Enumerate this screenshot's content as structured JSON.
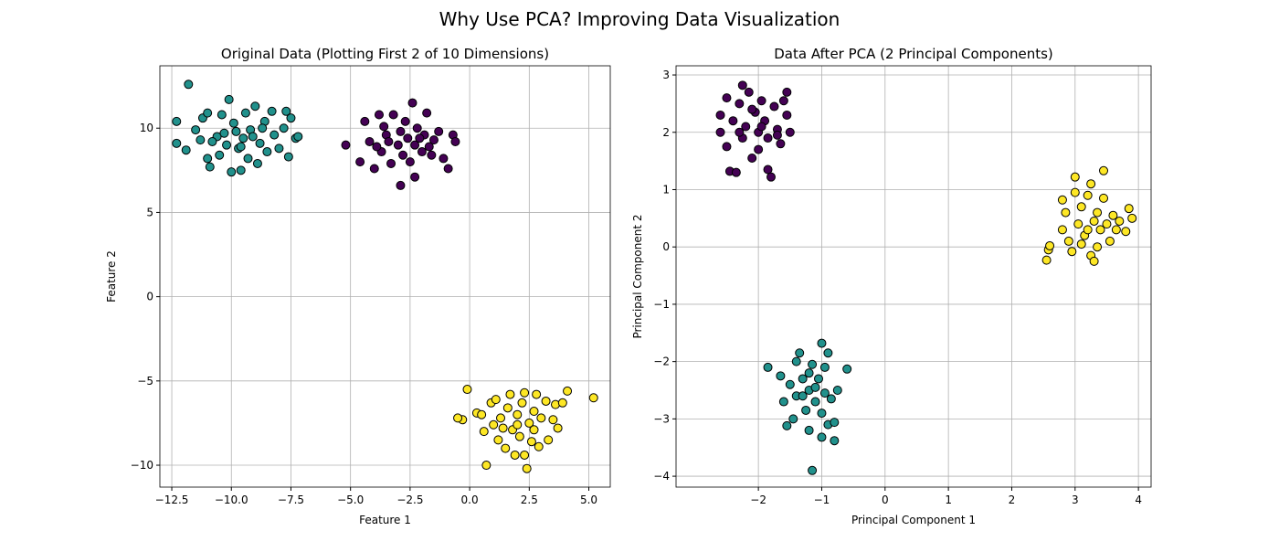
{
  "chart_data": {
    "suptitle": "Why Use PCA? Improving Data Visualization",
    "colors": {
      "0": "#440154",
      "1": "#21918c",
      "2": "#fde725"
    },
    "charts": [
      {
        "type": "scatter",
        "title": "Original Data (Plotting First 2 of 10 Dimensions)",
        "xlabel": "Feature 1",
        "ylabel": "Feature 2",
        "xlim": [
          -13.0,
          5.9
        ],
        "ylim": [
          -11.3,
          13.7
        ],
        "xticks": [
          -12.5,
          -10.0,
          -7.5,
          -5.0,
          -2.5,
          0.0,
          2.5,
          5.0
        ],
        "xtick_labels": [
          "−12.5",
          "−10.0",
          "−7.5",
          "−5.0",
          "−2.5",
          "0.0",
          "2.5",
          "5.0"
        ],
        "yticks": [
          -10,
          -5,
          0,
          5,
          10
        ],
        "ytick_labels": [
          "−10",
          "−5",
          "0",
          "5",
          "10"
        ],
        "grid": true,
        "clusters": [
          {
            "label": 1,
            "points": [
              [
                -11.8,
                12.6
              ],
              [
                -12.3,
                10.4
              ],
              [
                -12.3,
                9.1
              ],
              [
                -11.9,
                8.7
              ],
              [
                -11.5,
                9.9
              ],
              [
                -11.2,
                10.6
              ],
              [
                -11.0,
                10.9
              ],
              [
                -11.0,
                8.2
              ],
              [
                -10.9,
                7.7
              ],
              [
                -10.6,
                9.5
              ],
              [
                -10.5,
                8.4
              ],
              [
                -10.4,
                10.8
              ],
              [
                -10.2,
                9.0
              ],
              [
                -10.1,
                11.7
              ],
              [
                -10.0,
                7.4
              ],
              [
                -9.9,
                10.3
              ],
              [
                -9.8,
                9.8
              ],
              [
                -9.7,
                8.8
              ],
              [
                -9.6,
                7.5
              ],
              [
                -9.5,
                9.4
              ],
              [
                -9.4,
                10.9
              ],
              [
                -9.3,
                8.2
              ],
              [
                -9.2,
                9.9
              ],
              [
                -9.0,
                11.3
              ],
              [
                -8.9,
                7.9
              ],
              [
                -8.8,
                9.1
              ],
              [
                -8.6,
                10.4
              ],
              [
                -8.5,
                8.6
              ],
              [
                -8.3,
                11.0
              ],
              [
                -8.2,
                9.6
              ],
              [
                -8.0,
                8.8
              ],
              [
                -7.8,
                10.0
              ],
              [
                -7.7,
                11.0
              ],
              [
                -7.6,
                8.3
              ],
              [
                -7.5,
                10.6
              ],
              [
                -7.3,
                9.4
              ],
              [
                -7.2,
                9.5
              ],
              [
                -10.8,
                9.2
              ],
              [
                -9.1,
                9.5
              ],
              [
                -8.7,
                10.0
              ],
              [
                -10.3,
                9.7
              ],
              [
                -9.6,
                8.9
              ],
              [
                -11.3,
                9.3
              ]
            ]
          },
          {
            "label": 0,
            "points": [
              [
                -5.2,
                9.0
              ],
              [
                -4.6,
                8.0
              ],
              [
                -4.4,
                10.4
              ],
              [
                -4.2,
                9.2
              ],
              [
                -4.0,
                7.6
              ],
              [
                -3.8,
                10.8
              ],
              [
                -3.7,
                8.6
              ],
              [
                -3.5,
                9.6
              ],
              [
                -3.3,
                7.9
              ],
              [
                -3.2,
                10.8
              ],
              [
                -3.0,
                9.0
              ],
              [
                -2.9,
                6.6
              ],
              [
                -2.8,
                8.4
              ],
              [
                -2.7,
                10.4
              ],
              [
                -2.6,
                9.4
              ],
              [
                -2.5,
                8.0
              ],
              [
                -2.4,
                11.5
              ],
              [
                -2.3,
                9.0
              ],
              [
                -2.3,
                7.1
              ],
              [
                -2.2,
                10.0
              ],
              [
                -2.0,
                8.6
              ],
              [
                -1.9,
                9.6
              ],
              [
                -1.8,
                10.9
              ],
              [
                -1.7,
                8.9
              ],
              [
                -1.5,
                9.3
              ],
              [
                -1.3,
                9.8
              ],
              [
                -1.1,
                8.2
              ],
              [
                -0.9,
                7.6
              ],
              [
                -0.7,
                9.6
              ],
              [
                -0.6,
                9.2
              ],
              [
                -3.9,
                8.9
              ],
              [
                -3.4,
                9.2
              ],
              [
                -2.1,
                9.4
              ],
              [
                -1.6,
                8.4
              ],
              [
                -2.9,
                9.8
              ],
              [
                -3.6,
                10.1
              ]
            ]
          },
          {
            "label": 2,
            "points": [
              [
                -0.3,
                -7.3
              ],
              [
                -0.5,
                -7.2
              ],
              [
                -0.1,
                -5.5
              ],
              [
                0.3,
                -6.9
              ],
              [
                0.5,
                -7.0
              ],
              [
                0.6,
                -8.0
              ],
              [
                0.7,
                -10.0
              ],
              [
                0.9,
                -6.3
              ],
              [
                1.0,
                -7.6
              ],
              [
                1.1,
                -6.1
              ],
              [
                1.2,
                -8.5
              ],
              [
                1.3,
                -7.2
              ],
              [
                1.5,
                -9.0
              ],
              [
                1.6,
                -6.6
              ],
              [
                1.7,
                -5.8
              ],
              [
                1.8,
                -7.9
              ],
              [
                1.9,
                -9.4
              ],
              [
                2.0,
                -7.0
              ],
              [
                2.1,
                -8.3
              ],
              [
                2.2,
                -6.3
              ],
              [
                2.3,
                -5.7
              ],
              [
                2.3,
                -9.4
              ],
              [
                2.4,
                -10.2
              ],
              [
                2.5,
                -7.5
              ],
              [
                2.6,
                -8.6
              ],
              [
                2.7,
                -6.8
              ],
              [
                2.8,
                -5.8
              ],
              [
                2.9,
                -8.9
              ],
              [
                3.0,
                -7.2
              ],
              [
                3.2,
                -6.2
              ],
              [
                3.3,
                -8.5
              ],
              [
                3.5,
                -7.3
              ],
              [
                3.6,
                -6.4
              ],
              [
                3.7,
                -7.8
              ],
              [
                3.9,
                -6.3
              ],
              [
                4.1,
                -5.6
              ],
              [
                5.2,
                -6.0
              ],
              [
                1.4,
                -7.8
              ],
              [
                2.0,
                -7.6
              ],
              [
                2.7,
                -7.9
              ]
            ]
          }
        ]
      },
      {
        "type": "scatter",
        "title": "Data After PCA (2 Principal Components)",
        "xlabel": "Principal Component 1",
        "ylabel": "Principal Component 2",
        "xlim": [
          -3.3,
          4.2
        ],
        "ylim": [
          -4.19,
          3.16
        ],
        "xticks": [
          -2,
          -1,
          0,
          1,
          2,
          3,
          4
        ],
        "xtick_labels": [
          "−2",
          "−1",
          "0",
          "1",
          "2",
          "3",
          "4"
        ],
        "yticks": [
          -4,
          -3,
          -2,
          -1,
          0,
          1,
          2,
          3
        ],
        "ytick_labels": [
          "−4",
          "−3",
          "−2",
          "−1",
          "0",
          "1",
          "2",
          "3"
        ],
        "grid": true,
        "clusters": [
          {
            "label": 0,
            "points": [
              [
                -2.6,
                2.3
              ],
              [
                -2.6,
                2.0
              ],
              [
                -2.5,
                2.6
              ],
              [
                -2.5,
                1.75
              ],
              [
                -2.45,
                1.32
              ],
              [
                -2.4,
                2.2
              ],
              [
                -2.35,
                1.3
              ],
              [
                -2.3,
                2.5
              ],
              [
                -2.25,
                2.82
              ],
              [
                -2.25,
                1.9
              ],
              [
                -2.2,
                2.1
              ],
              [
                -2.15,
                2.7
              ],
              [
                -2.1,
                1.55
              ],
              [
                -2.05,
                2.35
              ],
              [
                -2.0,
                2.0
              ],
              [
                -2.0,
                1.7
              ],
              [
                -1.95,
                2.55
              ],
              [
                -1.9,
                2.2
              ],
              [
                -1.85,
                1.9
              ],
              [
                -1.85,
                1.35
              ],
              [
                -1.8,
                1.22
              ],
              [
                -1.75,
                2.45
              ],
              [
                -1.7,
                2.05
              ],
              [
                -1.65,
                1.8
              ],
              [
                -1.6,
                2.55
              ],
              [
                -1.55,
                2.3
              ],
              [
                -1.55,
                2.7
              ],
              [
                -1.5,
                2.0
              ],
              [
                -2.3,
                2.0
              ],
              [
                -1.95,
                2.1
              ],
              [
                -2.1,
                2.4
              ],
              [
                -1.7,
                1.95
              ]
            ]
          },
          {
            "label": 2,
            "points": [
              [
                2.55,
                -0.23
              ],
              [
                2.58,
                -0.05
              ],
              [
                2.6,
                0.02
              ],
              [
                2.8,
                0.82
              ],
              [
                2.8,
                0.3
              ],
              [
                2.85,
                0.6
              ],
              [
                2.9,
                0.1
              ],
              [
                2.95,
                -0.08
              ],
              [
                3.0,
                1.22
              ],
              [
                3.0,
                0.95
              ],
              [
                3.05,
                0.4
              ],
              [
                3.1,
                0.7
              ],
              [
                3.1,
                0.05
              ],
              [
                3.15,
                0.2
              ],
              [
                3.2,
                0.9
              ],
              [
                3.25,
                1.1
              ],
              [
                3.25,
                -0.15
              ],
              [
                3.3,
                -0.25
              ],
              [
                3.3,
                0.45
              ],
              [
                3.35,
                0.6
              ],
              [
                3.4,
                0.3
              ],
              [
                3.45,
                1.33
              ],
              [
                3.45,
                0.85
              ],
              [
                3.5,
                0.4
              ],
              [
                3.55,
                0.1
              ],
              [
                3.6,
                0.55
              ],
              [
                3.65,
                0.3
              ],
              [
                3.7,
                0.45
              ],
              [
                3.8,
                0.27
              ],
              [
                3.85,
                0.67
              ],
              [
                3.9,
                0.5
              ],
              [
                3.2,
                0.3
              ],
              [
                3.35,
                0.0
              ]
            ]
          },
          {
            "label": 1,
            "points": [
              [
                -1.85,
                -2.1
              ],
              [
                -1.65,
                -2.25
              ],
              [
                -1.6,
                -2.7
              ],
              [
                -1.55,
                -3.12
              ],
              [
                -1.5,
                -2.4
              ],
              [
                -1.45,
                -3.0
              ],
              [
                -1.4,
                -2.0
              ],
              [
                -1.4,
                -2.6
              ],
              [
                -1.35,
                -1.85
              ],
              [
                -1.3,
                -2.3
              ],
              [
                -1.25,
                -2.85
              ],
              [
                -1.2,
                -2.5
              ],
              [
                -1.2,
                -3.2
              ],
              [
                -1.15,
                -2.05
              ],
              [
                -1.15,
                -3.9
              ],
              [
                -1.1,
                -2.7
              ],
              [
                -1.05,
                -2.3
              ],
              [
                -1.0,
                -1.68
              ],
              [
                -1.0,
                -2.9
              ],
              [
                -1.0,
                -3.32
              ],
              [
                -0.95,
                -2.1
              ],
              [
                -0.95,
                -2.55
              ],
              [
                -0.9,
                -1.85
              ],
              [
                -0.9,
                -3.1
              ],
              [
                -0.85,
                -2.65
              ],
              [
                -0.8,
                -3.06
              ],
              [
                -0.8,
                -3.38
              ],
              [
                -0.75,
                -2.5
              ],
              [
                -0.6,
                -2.13
              ],
              [
                -1.3,
                -2.6
              ],
              [
                -1.1,
                -2.45
              ],
              [
                -1.2,
                -2.2
              ]
            ]
          }
        ]
      }
    ]
  }
}
